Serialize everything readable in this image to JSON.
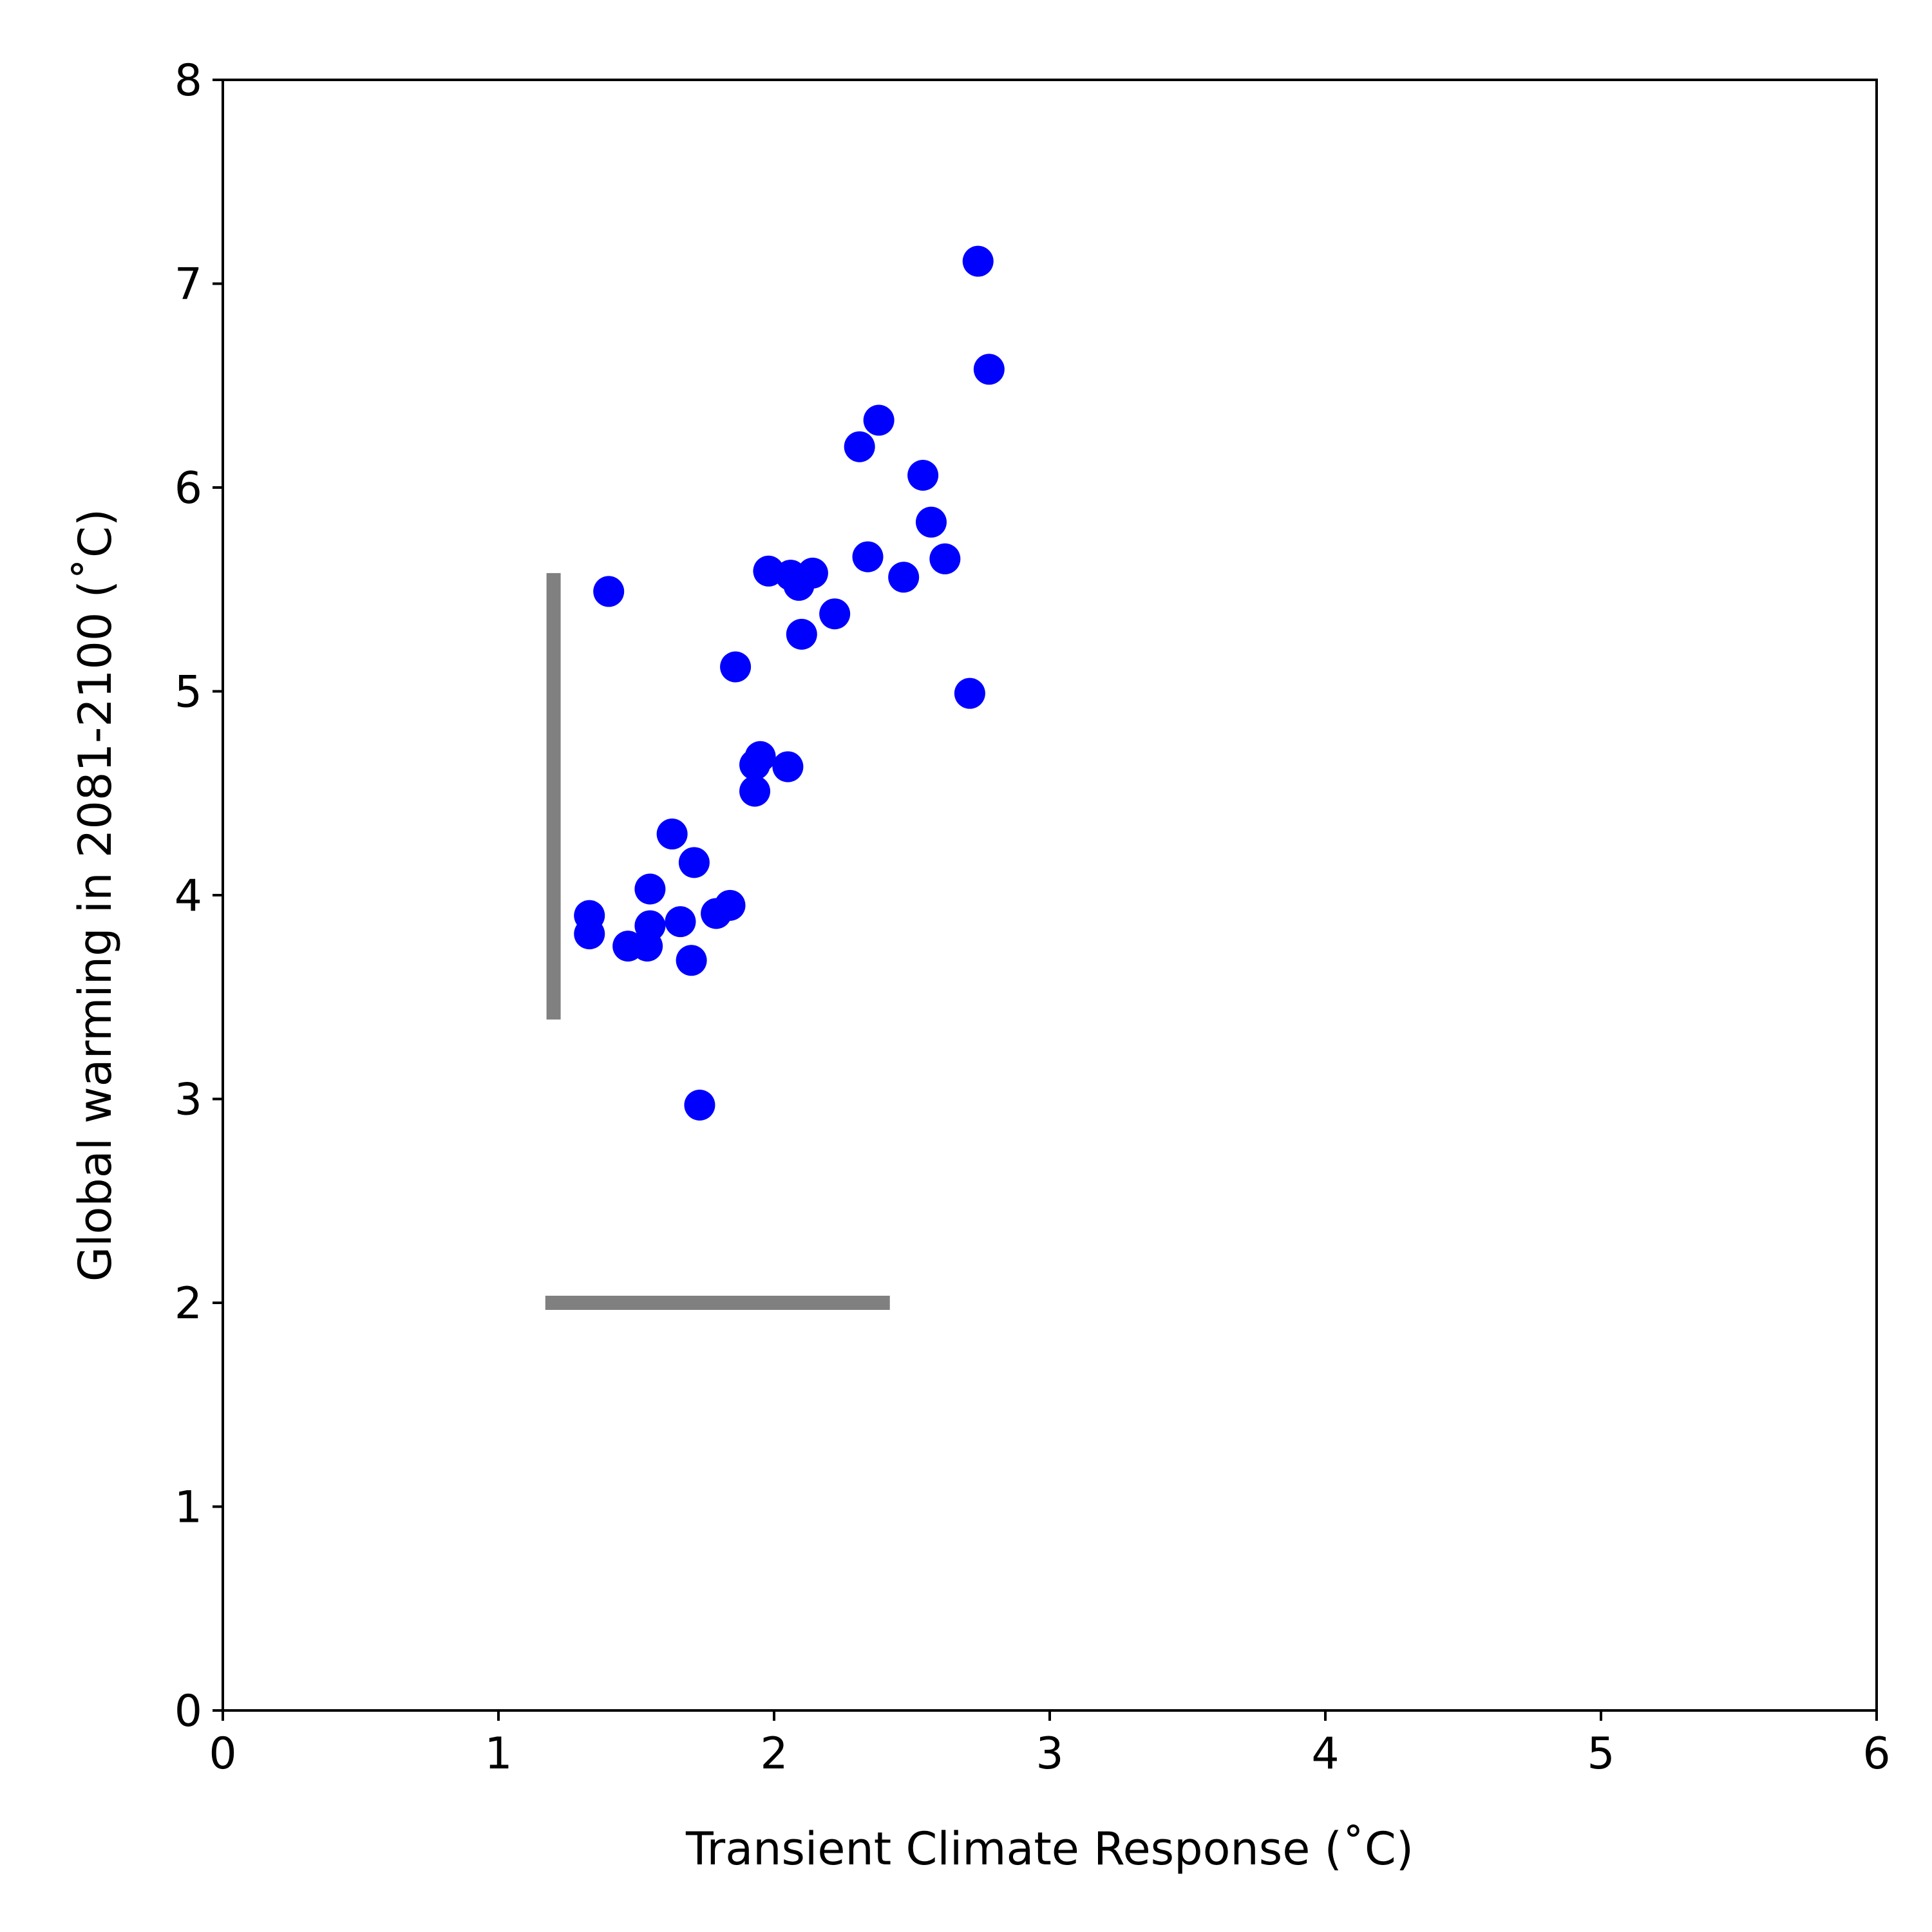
{
  "chart_data": {
    "type": "scatter",
    "title": "",
    "xlabel": "Transient Climate Response ($^\\circ$C)",
    "xlabel_display": "Transient Climate Response (˚C)",
    "ylabel": "Global warming in 2081-2100 ($^\\circ$C)",
    "ylabel_display": "Global warming in 2081-2100 (˚C)",
    "xlim": [
      0,
      6
    ],
    "ylim": [
      0,
      8
    ],
    "xticks": [
      0,
      1,
      2,
      3,
      4,
      5,
      6
    ],
    "yticks": [
      0,
      1,
      2,
      3,
      4,
      5,
      6,
      7,
      8
    ],
    "grid": false,
    "legend": "none",
    "point_color": "#0000ff",
    "range_color": "#808080",
    "points": [
      {
        "x": 1.33,
        "y": 3.9
      },
      {
        "x": 1.33,
        "y": 3.81
      },
      {
        "x": 1.4,
        "y": 5.49
      },
      {
        "x": 1.47,
        "y": 3.75
      },
      {
        "x": 1.54,
        "y": 3.75
      },
      {
        "x": 1.55,
        "y": 3.85
      },
      {
        "x": 1.55,
        "y": 4.03
      },
      {
        "x": 1.63,
        "y": 4.3
      },
      {
        "x": 1.66,
        "y": 3.87
      },
      {
        "x": 1.7,
        "y": 3.68
      },
      {
        "x": 1.71,
        "y": 4.16
      },
      {
        "x": 1.73,
        "y": 2.97
      },
      {
        "x": 1.79,
        "y": 3.91
      },
      {
        "x": 1.84,
        "y": 3.95
      },
      {
        "x": 1.86,
        "y": 5.12
      },
      {
        "x": 1.93,
        "y": 4.51
      },
      {
        "x": 1.93,
        "y": 4.64
      },
      {
        "x": 1.95,
        "y": 4.68
      },
      {
        "x": 1.98,
        "y": 5.59
      },
      {
        "x": 2.05,
        "y": 4.63
      },
      {
        "x": 2.06,
        "y": 5.57
      },
      {
        "x": 2.09,
        "y": 5.52
      },
      {
        "x": 2.1,
        "y": 5.28
      },
      {
        "x": 2.14,
        "y": 5.58
      },
      {
        "x": 2.22,
        "y": 5.38
      },
      {
        "x": 2.31,
        "y": 6.2
      },
      {
        "x": 2.34,
        "y": 5.66
      },
      {
        "x": 2.38,
        "y": 6.33
      },
      {
        "x": 2.47,
        "y": 5.56
      },
      {
        "x": 2.54,
        "y": 6.06
      },
      {
        "x": 2.57,
        "y": 5.83
      },
      {
        "x": 2.62,
        "y": 5.65
      },
      {
        "x": 2.71,
        "y": 4.99
      },
      {
        "x": 2.74,
        "y": 7.11
      },
      {
        "x": 2.78,
        "y": 6.58
      }
    ],
    "range_lines": [
      {
        "orientation": "vertical",
        "x": 1.2,
        "y_from": 3.39,
        "y_to": 5.58
      },
      {
        "orientation": "horizontal",
        "y": 2.0,
        "x_from": 1.17,
        "x_to": 2.42
      }
    ]
  }
}
